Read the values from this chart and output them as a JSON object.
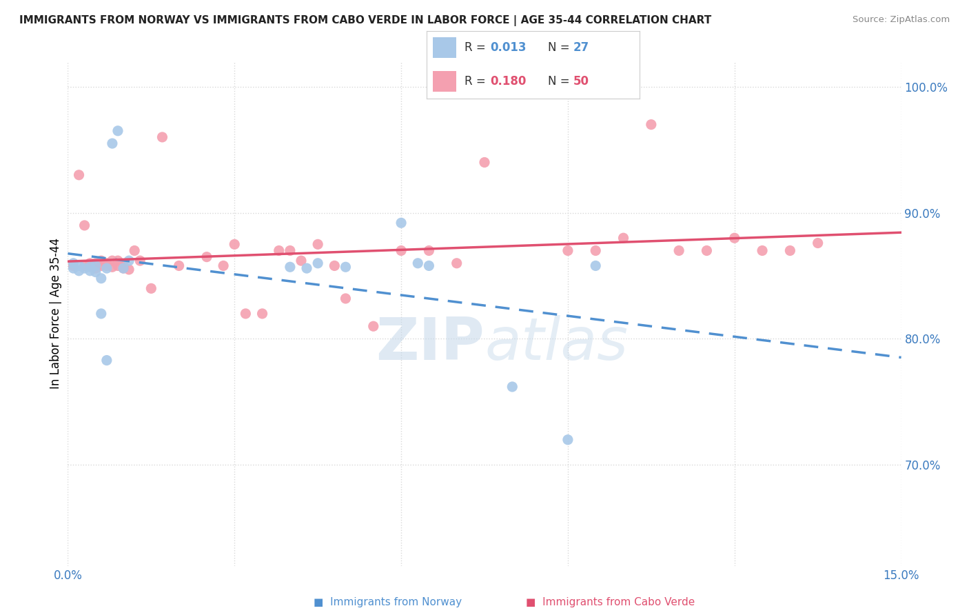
{
  "title": "IMMIGRANTS FROM NORWAY VS IMMIGRANTS FROM CABO VERDE IN LABOR FORCE | AGE 35-44 CORRELATION CHART",
  "source": "Source: ZipAtlas.com",
  "ylabel": "In Labor Force | Age 35-44",
  "xlim": [
    0.0,
    0.15
  ],
  "ylim": [
    0.62,
    1.02
  ],
  "xtick_positions": [
    0.0,
    0.03,
    0.06,
    0.09,
    0.12,
    0.15
  ],
  "xticklabels": [
    "0.0%",
    "",
    "",
    "",
    "",
    "15.0%"
  ],
  "yticks_right": [
    0.7,
    0.8,
    0.9,
    1.0
  ],
  "ytick_labels_right": [
    "70.0%",
    "80.0%",
    "90.0%",
    "100.0%"
  ],
  "norway_color": "#a8c8e8",
  "cabo_verde_color": "#f4a0b0",
  "norway_line_color": "#5090d0",
  "cabo_verde_line_color": "#e05070",
  "norway_R": 0.013,
  "norway_N": 27,
  "cabo_verde_R": 0.18,
  "cabo_verde_N": 50,
  "norway_scatter_x": [
    0.001,
    0.001,
    0.002,
    0.002,
    0.003,
    0.004,
    0.004,
    0.005,
    0.005,
    0.006,
    0.006,
    0.007,
    0.007,
    0.008,
    0.009,
    0.01,
    0.011,
    0.04,
    0.043,
    0.045,
    0.05,
    0.06,
    0.063,
    0.065,
    0.08,
    0.09,
    0.095
  ],
  "norway_scatter_y": [
    0.86,
    0.856,
    0.858,
    0.854,
    0.856,
    0.854,
    0.857,
    0.858,
    0.853,
    0.848,
    0.82,
    0.783,
    0.856,
    0.955,
    0.965,
    0.856,
    0.862,
    0.857,
    0.856,
    0.86,
    0.857,
    0.892,
    0.86,
    0.858,
    0.762,
    0.72,
    0.858
  ],
  "cabo_verde_scatter_x": [
    0.001,
    0.002,
    0.003,
    0.003,
    0.004,
    0.004,
    0.005,
    0.005,
    0.006,
    0.006,
    0.007,
    0.007,
    0.008,
    0.008,
    0.009,
    0.009,
    0.01,
    0.01,
    0.011,
    0.012,
    0.013,
    0.015,
    0.017,
    0.02,
    0.025,
    0.028,
    0.03,
    0.032,
    0.035,
    0.038,
    0.04,
    0.042,
    0.045,
    0.048,
    0.05,
    0.055,
    0.06,
    0.065,
    0.07,
    0.075,
    0.09,
    0.095,
    0.1,
    0.105,
    0.11,
    0.115,
    0.12,
    0.125,
    0.13,
    0.135
  ],
  "cabo_verde_scatter_y": [
    0.858,
    0.93,
    0.858,
    0.89,
    0.858,
    0.86,
    0.856,
    0.86,
    0.858,
    0.862,
    0.858,
    0.86,
    0.857,
    0.862,
    0.858,
    0.862,
    0.856,
    0.858,
    0.855,
    0.87,
    0.862,
    0.84,
    0.96,
    0.858,
    0.865,
    0.858,
    0.875,
    0.82,
    0.82,
    0.87,
    0.87,
    0.862,
    0.875,
    0.858,
    0.832,
    0.81,
    0.87,
    0.87,
    0.86,
    0.94,
    0.87,
    0.87,
    0.88,
    0.97,
    0.87,
    0.87,
    0.88,
    0.87,
    0.87,
    0.876
  ],
  "background_color": "#ffffff",
  "grid_color": "#d8d8d8",
  "watermark": "ZIPatlas"
}
